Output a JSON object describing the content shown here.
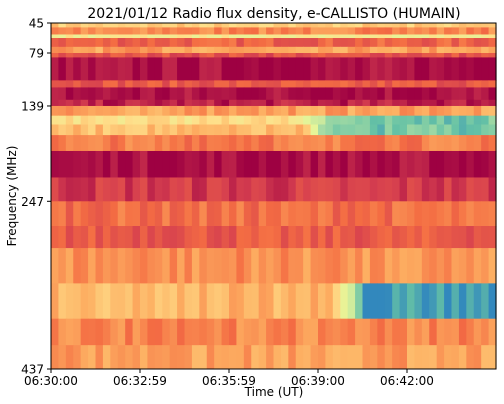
{
  "chart_data": {
    "type": "heatmap",
    "title": "2021/01/12  Radio flux density, e-CALLISTO (HUMAIN)",
    "xlabel": "Time (UT)",
    "ylabel": "Frequency (MHz)",
    "x_ticks": [
      "06:30:00",
      "06:32:59",
      "06:35:59",
      "06:39:00",
      "06:42:00"
    ],
    "y_ticks": [
      "45",
      "79",
      "139",
      "247",
      "437"
    ],
    "ylim": [
      45,
      437
    ],
    "colormap": [
      "#9e0142",
      "#d53e4f",
      "#f46d43",
      "#fdae61",
      "#fee08b",
      "#e6f598",
      "#abdda4",
      "#66c2a5",
      "#3288bd"
    ],
    "bands": [
      {
        "from": 45,
        "to": 50,
        "level": 0.45
      },
      {
        "from": 50,
        "to": 58,
        "level": 0.3
      },
      {
        "from": 58,
        "to": 62,
        "level": 0.55
      },
      {
        "from": 62,
        "to": 72,
        "level": 0.22
      },
      {
        "from": 72,
        "to": 79,
        "level": 0.35
      },
      {
        "from": 79,
        "to": 84,
        "level": 0.18
      },
      {
        "from": 84,
        "to": 110,
        "level": 0.02
      },
      {
        "from": 110,
        "to": 118,
        "level": 0.2
      },
      {
        "from": 118,
        "to": 132,
        "level": 0.03
      },
      {
        "from": 132,
        "to": 139,
        "level": 0.06
      },
      {
        "from": 139,
        "to": 150,
        "level": 0.35
      },
      {
        "from": 150,
        "to": 160,
        "level": 0.5
      },
      {
        "from": 160,
        "to": 172,
        "level": 0.42
      },
      {
        "from": 172,
        "to": 190,
        "level": 0.28
      },
      {
        "from": 190,
        "to": 220,
        "level": 0.02
      },
      {
        "from": 220,
        "to": 247,
        "level": 0.12
      },
      {
        "from": 247,
        "to": 275,
        "level": 0.25
      },
      {
        "from": 275,
        "to": 300,
        "level": 0.2
      },
      {
        "from": 300,
        "to": 340,
        "level": 0.32
      },
      {
        "from": 340,
        "to": 380,
        "level": 0.4
      },
      {
        "from": 380,
        "to": 410,
        "level": 0.3
      },
      {
        "from": 410,
        "to": 437,
        "level": 0.35
      }
    ],
    "bursts": [
      {
        "t_from": 0.55,
        "t_to": 1.0,
        "f_from": 150,
        "f_to": 165,
        "level": 0.85
      },
      {
        "t_from": 0.62,
        "t_to": 1.0,
        "f_from": 352,
        "f_to": 380,
        "level": 0.95
      }
    ]
  }
}
